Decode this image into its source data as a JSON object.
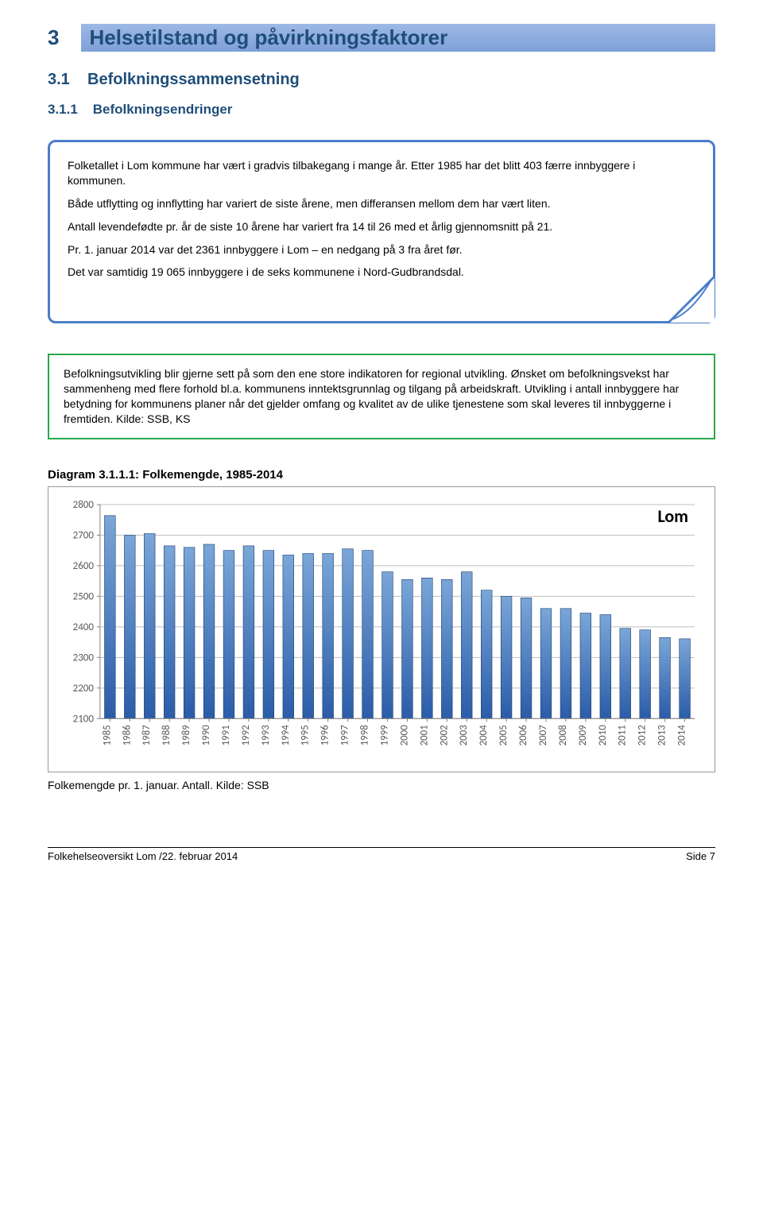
{
  "heading1": {
    "number": "3",
    "text": "Helsetilstand og påvirkningsfaktorer"
  },
  "heading2": {
    "number": "3.1",
    "text": "Befolkningssammensetning"
  },
  "heading3": {
    "number": "3.1.1",
    "text": "Befolkningsendringer"
  },
  "callout_blue": {
    "p1": "Folketallet i Lom kommune har vært i gradvis tilbakegang i mange år. Etter 1985 har det blitt 403 færre innbyggere i kommunen.",
    "p2": "Både utflytting og innflytting har variert de siste årene, men differansen mellom dem har vært liten.",
    "p3": "Antall levendefødte pr. år de siste 10 årene har variert fra 14 til 26 med et årlig gjennomsnitt på 21.",
    "p4": "Pr. 1. januar 2014 var det 2361 innbyggere i Lom – en nedgang på 3 fra året før.",
    "p5": "Det var samtidig 19 065 innbyggere i de seks kommunene i Nord-Gudbrandsdal."
  },
  "callout_green": {
    "text": "Befolkningsutvikling blir gjerne sett på som den ene store indikatoren for regional utvikling. Ønsket om befolkningsvekst har sammenheng med flere forhold bl.a. kommunens inntektsgrunnlag og tilgang på arbeidskraft. Utvikling i antall innbyggere har betydning for kommunens planer når det gjelder omfang og kvalitet av de ulike tjenestene som skal leveres til innbyggerne i fremtiden. Kilde: SSB, KS"
  },
  "chart": {
    "title": "Diagram 3.1.1.1: Folkemengde, 1985-2014",
    "caption": "Folkemengde pr. 1. januar. Antall. Kilde: SSB",
    "type": "bar",
    "legend_label": "Lom",
    "legend_font_size": 22,
    "legend_font_weight": "bold",
    "legend_color": "#000000",
    "background_color": "#ffffff",
    "plot_border_color": "#808080",
    "grid_color": "#bfbfbf",
    "axis_color": "#808080",
    "axis_label_color": "#595959",
    "axis_font_size": 13,
    "bar_fill_top": "#7aa6d8",
    "bar_fill_bottom": "#2a5ca8",
    "bar_edge_color": "#1f3d6b",
    "bar_width_ratio": 0.55,
    "ylim": [
      2100,
      2800
    ],
    "ytick_step": 100,
    "yticks": [
      2100,
      2200,
      2300,
      2400,
      2500,
      2600,
      2700,
      2800
    ],
    "categories": [
      "1985",
      "1986",
      "1987",
      "1988",
      "1989",
      "1990",
      "1991",
      "1992",
      "1993",
      "1994",
      "1995",
      "1996",
      "1997",
      "1998",
      "1999",
      "2000",
      "2001",
      "2002",
      "2003",
      "2004",
      "2005",
      "2006",
      "2007",
      "2008",
      "2009",
      "2010",
      "2011",
      "2012",
      "2013",
      "2014"
    ],
    "values": [
      2764,
      2700,
      2705,
      2665,
      2660,
      2670,
      2650,
      2665,
      2650,
      2635,
      2640,
      2640,
      2655,
      2650,
      2580,
      2555,
      2560,
      2555,
      2580,
      2520,
      2500,
      2495,
      2460,
      2460,
      2445,
      2440,
      2395,
      2390,
      2365,
      2361
    ]
  },
  "footer": {
    "left": "Folkehelseoversikt Lom /22. februar 2014",
    "right": "Side 7"
  },
  "colors": {
    "heading_color": "#1f4e79",
    "h1_bar_grad_top": "#9db8e6",
    "h1_bar_grad_bottom": "#7ea0d8",
    "blue_border": "#4a7dc9",
    "green_border": "#2aa84a"
  }
}
